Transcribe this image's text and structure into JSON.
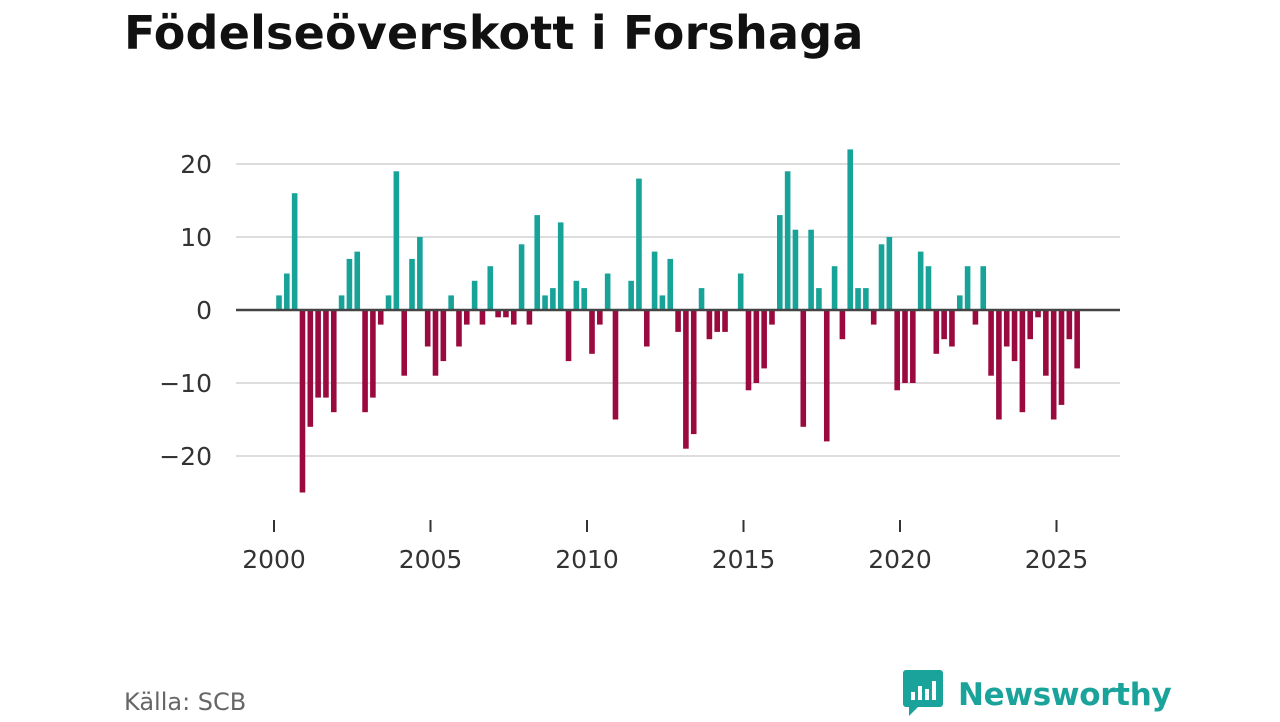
{
  "title": "Födelseöverskott i Forshaga",
  "source": "Källa: SCB",
  "brand": {
    "name": "Newsworthy",
    "icon": "newsworthy-logo-icon"
  },
  "colors": {
    "positive": "#17a398",
    "negative": "#9b0a3f",
    "brand": "#1aa39a"
  },
  "chart_data": {
    "type": "bar",
    "title": "Födelseöverskott i Forshaga",
    "xlabel": "",
    "ylabel": "",
    "ylim": [
      -27,
      23
    ],
    "yticks": [
      20,
      10,
      0,
      -10,
      -20
    ],
    "ytick_labels": [
      "20",
      "10",
      "0",
      "−10",
      "−20"
    ],
    "xticks": [
      2000,
      2005,
      2010,
      2015,
      2020,
      2025
    ],
    "xtick_labels": [
      "2000",
      "2005",
      "2010",
      "2015",
      "2020",
      "2025"
    ],
    "x_start": 2000,
    "x_step_months": 3,
    "grid": true,
    "values": [
      2,
      5,
      16,
      -25,
      -16,
      -12,
      -12,
      -14,
      2,
      7,
      8,
      -14,
      -12,
      -2,
      2,
      19,
      -9,
      7,
      10,
      -5,
      -9,
      -7,
      2,
      -5,
      -2,
      4,
      -2,
      6,
      -1,
      -1,
      -2,
      9,
      -2,
      13,
      2,
      3,
      12,
      -7,
      4,
      3,
      -6,
      -2,
      5,
      -15,
      0,
      4,
      18,
      -5,
      8,
      2,
      7,
      -3,
      -19,
      -17,
      3,
      -4,
      -3,
      -3,
      0,
      5,
      -11,
      -10,
      -8,
      -2,
      13,
      19,
      11,
      -16,
      11,
      3,
      -18,
      6,
      -4,
      22,
      3,
      3,
      -2,
      9,
      10,
      -11,
      -10,
      -10,
      8,
      6,
      -6,
      -4,
      -5,
      2,
      6,
      -2,
      6,
      -9,
      -15,
      -5,
      -7,
      -14,
      -4,
      -1,
      -9,
      -15,
      -13,
      -4,
      -8
    ]
  }
}
